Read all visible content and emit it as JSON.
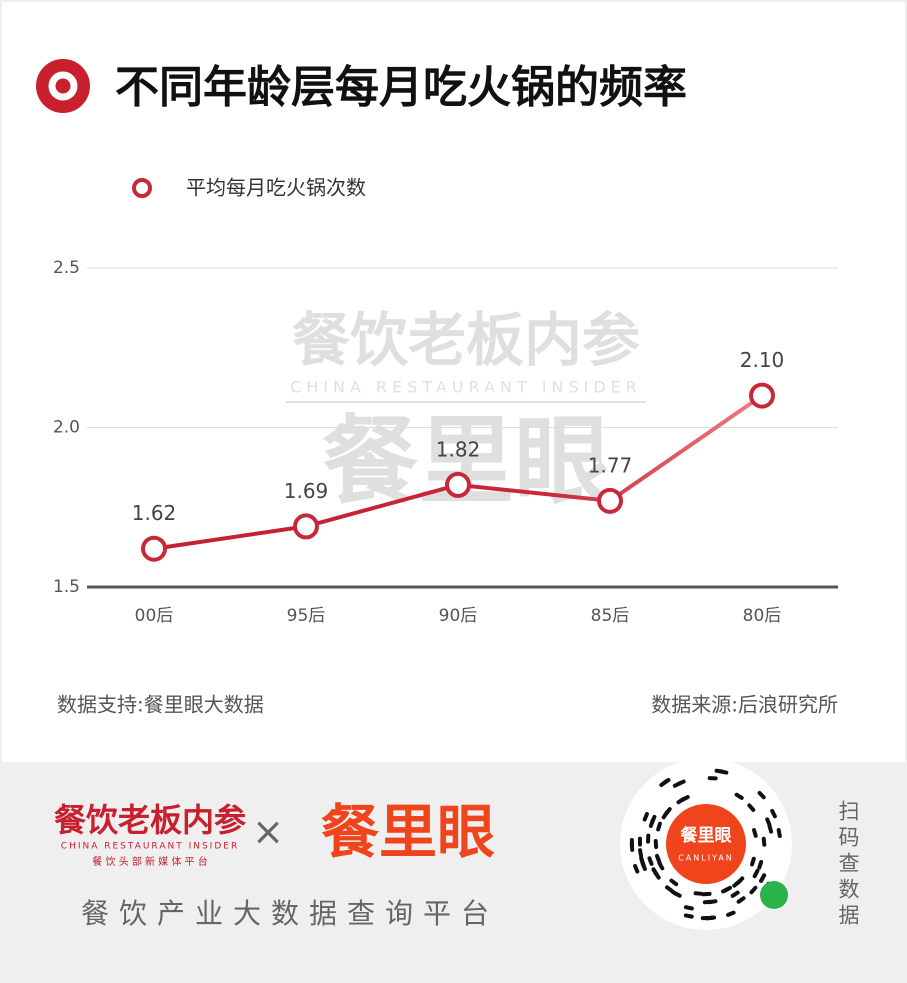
{
  "chart_data": {
    "type": "line",
    "title": "不同年龄层每月吃火锅的频率",
    "categories": [
      "00后",
      "95后",
      "90后",
      "85后",
      "80后"
    ],
    "series": [
      {
        "name": "平均每月吃火锅次数",
        "color": "#c8283a",
        "values": [
          1.62,
          1.69,
          1.82,
          1.77,
          2.1
        ],
        "value_labels": [
          "1.62",
          "1.69",
          "1.82",
          "1.77",
          "2.10"
        ]
      }
    ],
    "ylim": [
      1.5,
      2.5
    ],
    "yticks": [
      1.5,
      {
        "value": 2,
        "label": "2.0"
      },
      2.5
    ],
    "grid": true,
    "legend": "top-left",
    "source_left": "数据支持:餐里眼大数据",
    "source_right": "数据来源:后浪研究所"
  },
  "watermark": {
    "cn": "餐饮老板内参",
    "en": "CHINA RESTAURANT INSIDER",
    "brand": "餐里眼"
  },
  "footer": {
    "logo_cn": "餐饮老板内参",
    "logo_en": "CHINA RESTAURANT INSIDER",
    "logo_tagline": "餐 饮 头 部 新 媒 体 平 台",
    "times": "×",
    "brand": "餐里眼",
    "slogan": "餐饮产业大数据查询平台",
    "qr_brand": "餐里眼",
    "qr_en": "CANLIYAN",
    "scan": "扫码查数据"
  }
}
